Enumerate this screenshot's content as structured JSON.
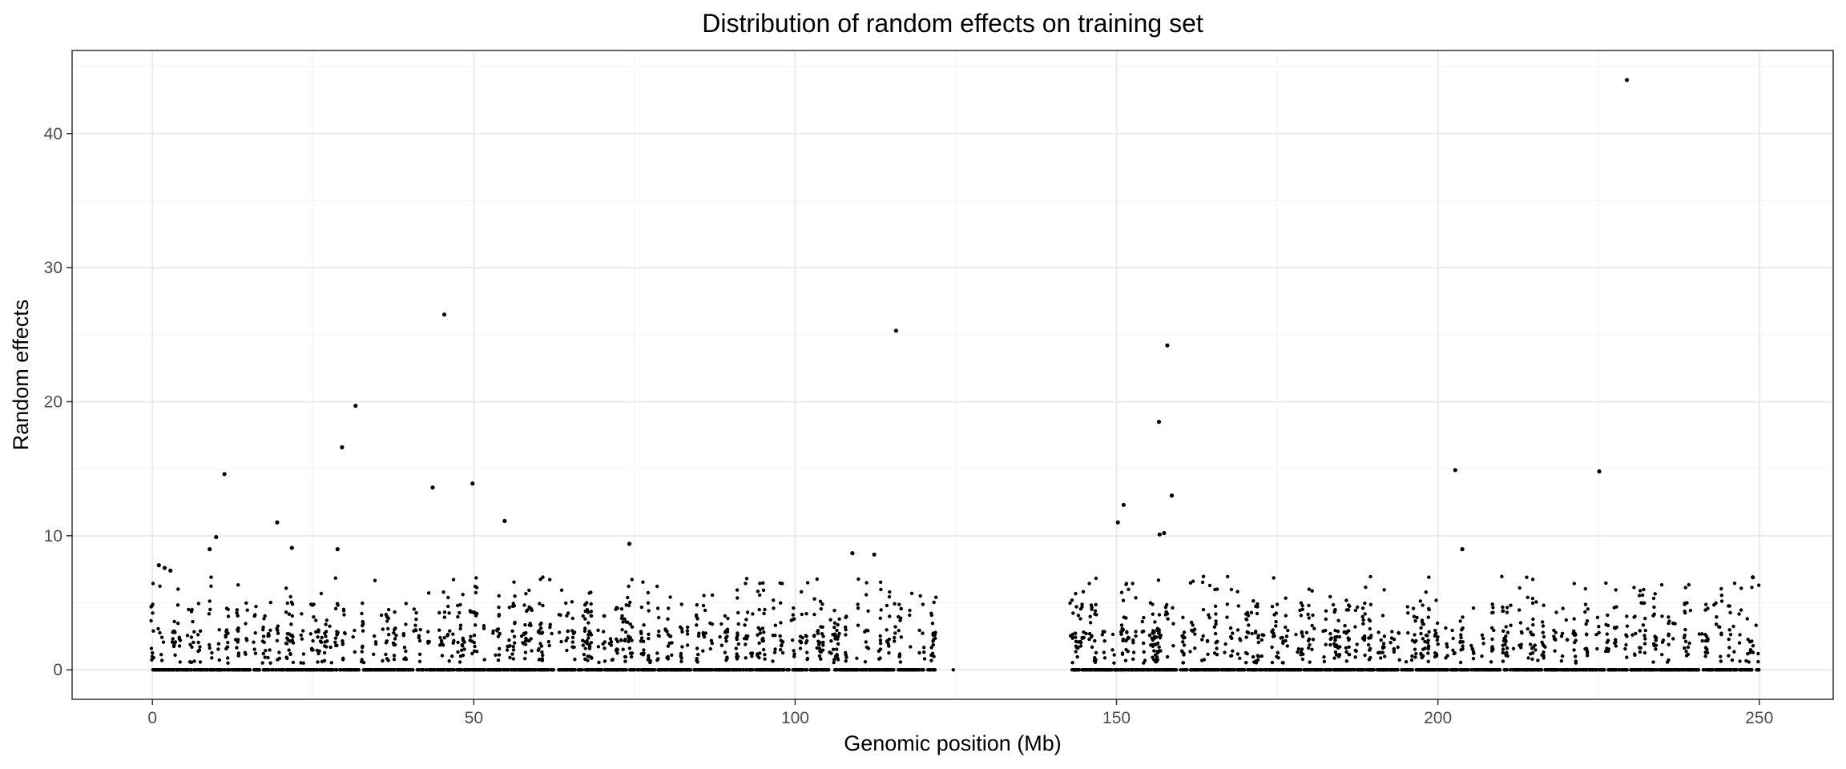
{
  "chart_data": {
    "type": "scatter",
    "title": "Distribution of random effects on training set",
    "xlabel": "Genomic position (Mb)",
    "ylabel": "Random effects",
    "xlim": [
      -12.5,
      261.5
    ],
    "ylim": [
      -2.2,
      46.2
    ],
    "x_ticks": [
      0,
      50,
      100,
      150,
      200,
      250
    ],
    "y_ticks": [
      0,
      10,
      20,
      30,
      40
    ],
    "grid": true,
    "legend": "none",
    "point_color": "#000000",
    "highlighted_points": [
      {
        "x": 229.4,
        "y": 44.0
      },
      {
        "x": 45.4,
        "y": 26.5
      },
      {
        "x": 115.7,
        "y": 25.3
      },
      {
        "x": 157.9,
        "y": 24.2
      },
      {
        "x": 31.6,
        "y": 19.7
      },
      {
        "x": 156.6,
        "y": 18.5
      },
      {
        "x": 29.5,
        "y": 16.6
      },
      {
        "x": 202.7,
        "y": 14.9
      },
      {
        "x": 225.1,
        "y": 14.8
      },
      {
        "x": 11.2,
        "y": 14.6
      },
      {
        "x": 49.8,
        "y": 13.9
      },
      {
        "x": 43.6,
        "y": 13.6
      },
      {
        "x": 158.6,
        "y": 13.0
      },
      {
        "x": 151.1,
        "y": 12.3
      },
      {
        "x": 19.4,
        "y": 11.0
      },
      {
        "x": 54.8,
        "y": 11.1
      },
      {
        "x": 150.2,
        "y": 11.0
      },
      {
        "x": 157.4,
        "y": 10.2
      },
      {
        "x": 156.7,
        "y": 10.1
      },
      {
        "x": 9.9,
        "y": 9.9
      },
      {
        "x": 74.2,
        "y": 9.4
      },
      {
        "x": 21.7,
        "y": 9.1
      },
      {
        "x": 8.9,
        "y": 9.0
      },
      {
        "x": 203.8,
        "y": 9.0
      },
      {
        "x": 28.8,
        "y": 9.0
      },
      {
        "x": 108.9,
        "y": 8.7
      },
      {
        "x": 112.3,
        "y": 8.6
      },
      {
        "x": 1.0,
        "y": 7.8
      },
      {
        "x": 1.9,
        "y": 7.6
      },
      {
        "x": 2.8,
        "y": 7.4
      },
      {
        "x": 249.0,
        "y": 6.9
      }
    ],
    "bulk_series": [
      {
        "x_range": [
          0,
          122
        ],
        "y_typical_range": [
          0,
          7
        ],
        "note": "dense cluster"
      },
      {
        "x_range": [
          143,
          250
        ],
        "y_typical_range": [
          0,
          7
        ],
        "note": "dense cluster"
      }
    ]
  }
}
